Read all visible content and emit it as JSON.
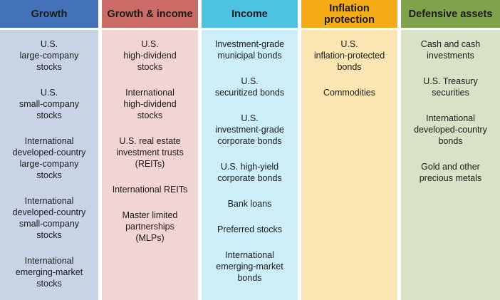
{
  "columns": [
    {
      "header": "Growth",
      "header_color": "#4472b8",
      "body_color": "#c8d4e6",
      "items": [
        "U.S.\nlarge-company\nstocks",
        "U.S.\nsmall-company\nstocks",
        "International\ndeveloped-country\nlarge-company\nstocks",
        "International\ndeveloped-country\nsmall-company\nstocks",
        "International\nemerging-market\nstocks"
      ]
    },
    {
      "header": "Growth & income",
      "header_color": "#cc6b66",
      "body_color": "#f1d5d3",
      "items": [
        "U.S.\nhigh-dividend\nstocks",
        "International\nhigh-dividend\nstocks",
        "U.S. real estate\ninvestment trusts\n(REITs)",
        "International REITs",
        "Master limited\npartnerships\n(MLPs)"
      ]
    },
    {
      "header": "Income",
      "header_color": "#4cc3e3",
      "body_color": "#cceef8",
      "items": [
        "Investment-grade\nmunicipal bonds",
        "U.S.\nsecuritized bonds",
        "U.S.\ninvestment-grade\ncorporate bonds",
        "U.S. high-yield\ncorporate bonds",
        "Bank loans",
        "Preferred stocks",
        "International\nemerging-market\nbonds"
      ]
    },
    {
      "header": "Inflation\nprotection",
      "header_color": "#f5ab16",
      "body_color": "#fbe5b3",
      "items": [
        "U.S.\ninflation-protected\nbonds",
        "Commodities"
      ]
    },
    {
      "header": "Defensive assets",
      "header_color": "#7ea34a",
      "body_color": "#d8e2c6",
      "items": [
        "Cash and cash\ninvestments",
        "U.S. Treasury\nsecurities",
        "International\ndeveloped-country\nbonds",
        "Gold and other\nprecious metals"
      ]
    }
  ]
}
